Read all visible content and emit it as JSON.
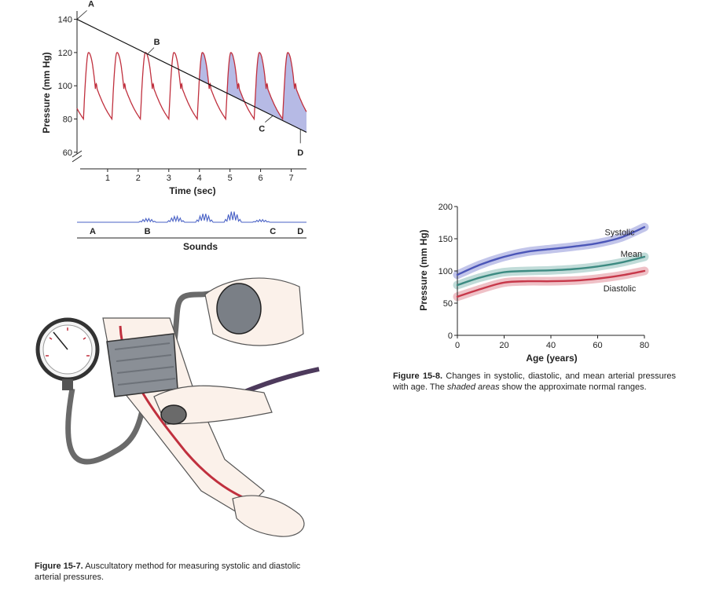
{
  "figure_7": {
    "caption_label": "Figure 15-7.",
    "caption_text": "Auscultatory method for measuring systolic and diastolic arterial pressures.",
    "illustration": "sphygmomanometer-cuff-and-stethoscope-on-arm"
  },
  "figure_8": {
    "caption_label": "Figure 15-8.",
    "caption_before": "Changes in systolic, diastolic, and mean arterial pressures with age. The ",
    "caption_italic": "shaded areas",
    "caption_after": " show the approximate normal ranges."
  },
  "chart_data": [
    {
      "id": "pressure-time",
      "type": "line",
      "xlabel": "Time (sec)",
      "ylabel": "Pressure (mm Hg)",
      "xlim": [
        0,
        7.5
      ],
      "ylim": [
        50,
        145
      ],
      "xticks": [
        1,
        2,
        3,
        4,
        5,
        6,
        7
      ],
      "yticks": [
        60,
        80,
        100,
        120,
        140
      ],
      "axis_break": true,
      "series": [
        {
          "kind": "arterial-pressure-waveform",
          "color": "#c0303e",
          "x_start": 0,
          "x_end": 7.5,
          "period_sec": 0.93,
          "systolic": 120,
          "diastolic": 80
        },
        {
          "kind": "cuff-pressure-line",
          "color": "#111111",
          "x": [
            0,
            7.5
          ],
          "y": [
            140,
            72
          ]
        }
      ],
      "shaded_region": {
        "between": "waveform above cuff line",
        "x": [
          4,
          7.5
        ],
        "color": "#a9aee0"
      },
      "point_labels": [
        {
          "label": "A",
          "x": 0,
          "y": 140
        },
        {
          "label": "B",
          "x": 2.3,
          "y": 119
        },
        {
          "label": "C",
          "x": 6.4,
          "y": 82
        },
        {
          "label": "D",
          "x": 7.3,
          "y": 74
        }
      ]
    },
    {
      "id": "sounds-strip",
      "type": "line",
      "xlabel": "Sounds",
      "labels": [
        "A",
        "B",
        "C",
        "D"
      ],
      "color": "#4a62c6",
      "bursts": [
        {
          "x": 2.3,
          "amplitude": 0.35
        },
        {
          "x": 3.23,
          "amplitude": 0.55
        },
        {
          "x": 4.16,
          "amplitude": 0.8
        },
        {
          "x": 5.09,
          "amplitude": 1.0
        },
        {
          "x": 6.02,
          "amplitude": 0.25
        }
      ]
    },
    {
      "id": "pressure-age",
      "type": "line",
      "xlabel": "Age (years)",
      "ylabel": "Pressure (mm Hg)",
      "xlim": [
        0,
        80
      ],
      "ylim": [
        0,
        200
      ],
      "xticks": [
        0,
        20,
        40,
        60,
        80
      ],
      "yticks": [
        0,
        50,
        100,
        150,
        200
      ],
      "x": [
        0,
        10,
        20,
        30,
        40,
        50,
        60,
        70,
        80
      ],
      "series": [
        {
          "name": "Systolic",
          "color": "#4b56b8",
          "band_color": "#b7bbe6",
          "values": [
            94,
            110,
            122,
            130,
            134,
            138,
            143,
            152,
            168
          ]
        },
        {
          "name": "Mean",
          "color": "#3d8b82",
          "band_color": "#b6d6d2",
          "values": [
            78,
            90,
            98,
            100,
            101,
            103,
            107,
            113,
            122
          ]
        },
        {
          "name": "Diastolic",
          "color": "#c7384a",
          "band_color": "#ecb6bd",
          "values": [
            60,
            72,
            82,
            84,
            84,
            85,
            88,
            93,
            100
          ]
        }
      ]
    }
  ]
}
